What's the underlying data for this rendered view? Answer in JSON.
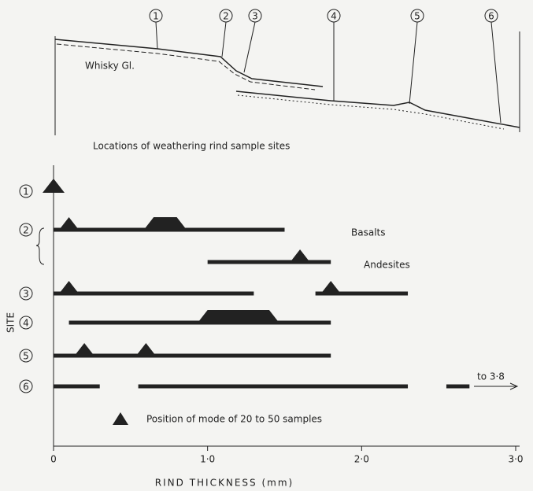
{
  "profile": {
    "markers": [
      "1",
      "2",
      "3",
      "4",
      "5",
      "6"
    ],
    "glacier_label": "Whisky Gl.",
    "caption": "Locations of weathering rind sample sites"
  },
  "chart_data": {
    "type": "range",
    "x_label": "RIND THICKNESS (mm)",
    "y_label": "SITE",
    "xlim": [
      0,
      3.0
    ],
    "xticks": [
      0,
      {
        "value": 1,
        "label": "1·0"
      },
      {
        "value": 2,
        "label": "2·0"
      },
      {
        "value": 3,
        "label": "3·0"
      }
    ],
    "color": "#222222",
    "rows": [
      {
        "site": "1",
        "ranges": [],
        "modes": [
          [
            0,
            0
          ]
        ]
      },
      {
        "site": "2",
        "label": "Basalts",
        "ranges": [
          [
            0,
            1.5
          ]
        ],
        "modes": [
          [
            0.1,
            0.1
          ],
          [
            0.65,
            0.8
          ]
        ]
      },
      {
        "site": null,
        "label": "Andesites",
        "ranges": [
          [
            1.0,
            1.8
          ]
        ],
        "modes": [
          [
            1.6,
            1.6
          ]
        ]
      },
      {
        "site": "3",
        "ranges": [
          [
            0,
            1.3
          ],
          [
            1.7,
            2.3
          ]
        ],
        "modes": [
          [
            0.1,
            0.1
          ],
          [
            1.8,
            1.8
          ]
        ]
      },
      {
        "site": "4",
        "ranges": [
          [
            0.1,
            1.8
          ]
        ],
        "modes": [
          [
            1.0,
            1.4
          ]
        ]
      },
      {
        "site": "5",
        "ranges": [
          [
            0,
            1.8
          ]
        ],
        "modes": [
          [
            0.2,
            0.2
          ],
          [
            0.6,
            0.6
          ]
        ]
      },
      {
        "site": "6",
        "ranges": [
          [
            0,
            0.3
          ],
          [
            0.55,
            2.3
          ],
          [
            2.55,
            2.7
          ]
        ],
        "modes": [],
        "annotation": "to 3·8"
      }
    ],
    "legend_label": "Position of mode of 20 to 50 samples"
  }
}
